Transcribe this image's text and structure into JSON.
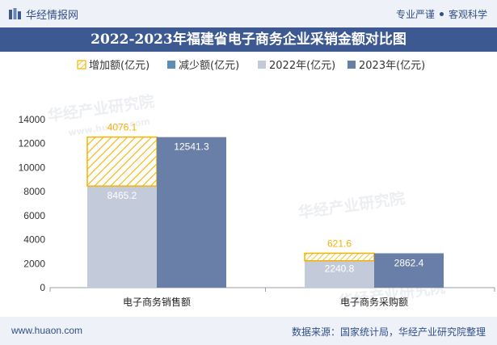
{
  "header": {
    "brand": "华经情报网",
    "slogan_left": "专业严谨",
    "slogan_right": "客观科学",
    "title": "2022-2023年福建省电子商务企业采销金额对比图"
  },
  "footer": {
    "website": "www.huaon.com",
    "source": "数据来源：国家统计局，华经产业研究院整理"
  },
  "watermark": {
    "line1": "华经产业研究院",
    "line2": "www.huaon.com"
  },
  "colors": {
    "increase": "#f5b400",
    "decrease": "#5b8fb9",
    "y2022": "#c3cad9",
    "y2023": "#6a7fa8",
    "header_bg": "#3c5a91"
  },
  "chart_data": {
    "type": "bar",
    "categories": [
      "电子商务销售额",
      "电子商务采购额"
    ],
    "series": [
      {
        "name": "增加额(亿元)",
        "values": [
          4076.1,
          621.6
        ]
      },
      {
        "name": "减少额(亿元)",
        "values": [
          0,
          0
        ]
      },
      {
        "name": "2022年(亿元)",
        "values": [
          8465.2,
          2240.8
        ]
      },
      {
        "name": "2023年(亿元)",
        "values": [
          12541.3,
          2862.4
        ]
      }
    ],
    "yticks": [
      0,
      2000,
      4000,
      6000,
      8000,
      10000,
      12000,
      14000
    ],
    "ylim": [
      0,
      14000
    ],
    "legend_position": "top"
  }
}
